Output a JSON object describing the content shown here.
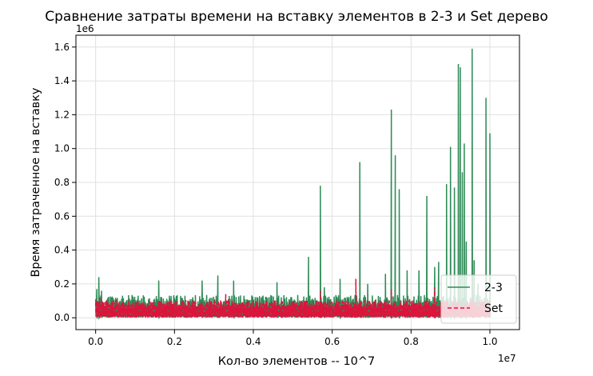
{
  "chart_data": {
    "type": "line",
    "title": "Сравнение затраты времени на вставку элементов в 2-3 и Set дерево",
    "xlabel": "Кол-во элементов -- 10^7",
    "ylabel": "Время затраченное на вставку",
    "x_offset_label": "1e7",
    "y_offset_label": "1e6",
    "xlim": [
      -0.05,
      1.075
    ],
    "ylim": [
      -0.07,
      1.67
    ],
    "x_ticks": [
      0.0,
      0.2,
      0.4,
      0.6,
      0.8,
      1.0
    ],
    "y_ticks": [
      0.0,
      0.2,
      0.4,
      0.6,
      0.8,
      1.0,
      1.2,
      1.4,
      1.6
    ],
    "x_tick_labels": [
      "0.0",
      "0.2",
      "0.4",
      "0.6",
      "0.8",
      "1.0"
    ],
    "y_tick_labels": [
      "0.0",
      "0.2",
      "0.4",
      "0.6",
      "0.8",
      "1.0",
      "1.2",
      "1.4",
      "1.6"
    ],
    "grid": true,
    "legend_position": "lower-right",
    "series": [
      {
        "name": "2-3",
        "color": "#2e8b57",
        "line_style": "solid",
        "x_range": [
          0.0,
          1.0
        ],
        "baseline": 0.1,
        "peaks": [
          {
            "x": 0.003,
            "y": 0.17
          },
          {
            "x": 0.008,
            "y": 0.24
          },
          {
            "x": 0.015,
            "y": 0.16
          },
          {
            "x": 0.16,
            "y": 0.22
          },
          {
            "x": 0.27,
            "y": 0.22
          },
          {
            "x": 0.31,
            "y": 0.25
          },
          {
            "x": 0.35,
            "y": 0.22
          },
          {
            "x": 0.46,
            "y": 0.21
          },
          {
            "x": 0.54,
            "y": 0.36
          },
          {
            "x": 0.57,
            "y": 0.78
          },
          {
            "x": 0.58,
            "y": 0.18
          },
          {
            "x": 0.62,
            "y": 0.23
          },
          {
            "x": 0.67,
            "y": 0.92
          },
          {
            "x": 0.69,
            "y": 0.2
          },
          {
            "x": 0.735,
            "y": 0.26
          },
          {
            "x": 0.75,
            "y": 1.23
          },
          {
            "x": 0.76,
            "y": 0.96
          },
          {
            "x": 0.77,
            "y": 0.76
          },
          {
            "x": 0.79,
            "y": 0.28
          },
          {
            "x": 0.82,
            "y": 0.28
          },
          {
            "x": 0.84,
            "y": 0.72
          },
          {
            "x": 0.86,
            "y": 0.3
          },
          {
            "x": 0.87,
            "y": 0.33
          },
          {
            "x": 0.89,
            "y": 0.79
          },
          {
            "x": 0.9,
            "y": 1.01
          },
          {
            "x": 0.91,
            "y": 0.77
          },
          {
            "x": 0.92,
            "y": 1.5
          },
          {
            "x": 0.925,
            "y": 1.48
          },
          {
            "x": 0.93,
            "y": 0.86
          },
          {
            "x": 0.935,
            "y": 1.03
          },
          {
            "x": 0.94,
            "y": 0.45
          },
          {
            "x": 0.955,
            "y": 1.59
          },
          {
            "x": 0.96,
            "y": 0.34
          },
          {
            "x": 0.97,
            "y": 0.2
          },
          {
            "x": 0.99,
            "y": 1.3
          },
          {
            "x": 1.0,
            "y": 1.09
          }
        ]
      },
      {
        "name": "Set",
        "color": "#dc143c",
        "line_style": "dashed",
        "x_range": [
          0.0,
          1.0
        ],
        "baseline": 0.08,
        "peaks": [
          {
            "x": 0.01,
            "y": 0.12
          },
          {
            "x": 0.33,
            "y": 0.14
          },
          {
            "x": 0.57,
            "y": 0.16
          },
          {
            "x": 0.66,
            "y": 0.23
          },
          {
            "x": 0.75,
            "y": 0.17
          },
          {
            "x": 0.86,
            "y": 0.18
          }
        ]
      }
    ]
  }
}
